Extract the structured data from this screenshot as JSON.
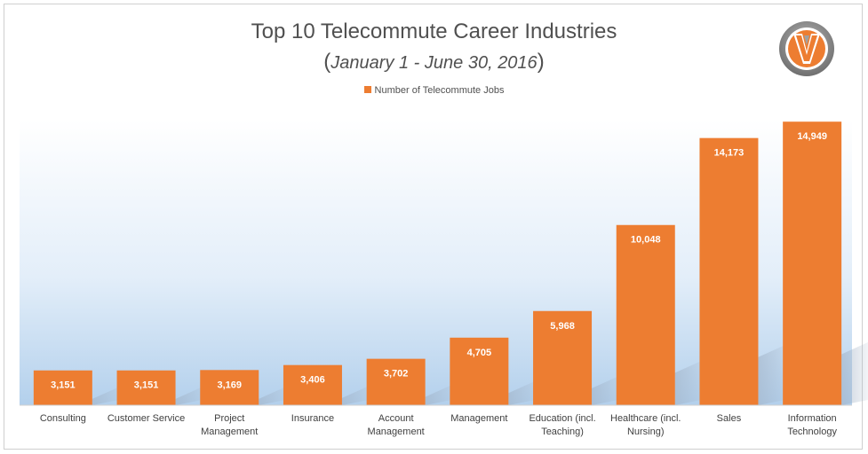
{
  "chart_data": {
    "type": "bar",
    "title": "Top 10 Telecommute Career Industries",
    "subtitle": "January 1 - June 30, 2016",
    "legend": "Number of Telecommute Jobs",
    "legend_position": "top",
    "categories": [
      [
        "Consulting"
      ],
      [
        "Customer Service"
      ],
      [
        "Project",
        "Management"
      ],
      [
        "Insurance"
      ],
      [
        "Account",
        "Management"
      ],
      [
        "Management"
      ],
      [
        "Education (incl.",
        "Teaching)"
      ],
      [
        "Healthcare (incl.",
        "Nursing)"
      ],
      [
        "Sales"
      ],
      [
        "Information",
        "Technology"
      ]
    ],
    "series": [
      {
        "name": "Number of Telecommute Jobs",
        "values": [
          3151,
          3151,
          3169,
          3406,
          3702,
          4705,
          5968,
          10048,
          14173,
          14949
        ],
        "data_labels": [
          "3,151",
          "3,151",
          "3,169",
          "3,406",
          "3,702",
          "4,705",
          "5,968",
          "10,048",
          "14,173",
          "14,949"
        ],
        "color": "#ED7D31"
      }
    ],
    "ylim": [
      1500,
      15000
    ],
    "grid": false,
    "axis_labels_shown": false
  },
  "logo": {
    "letter": "V",
    "ring_color": "#8a8a8a",
    "accent": "#ED7D31"
  }
}
